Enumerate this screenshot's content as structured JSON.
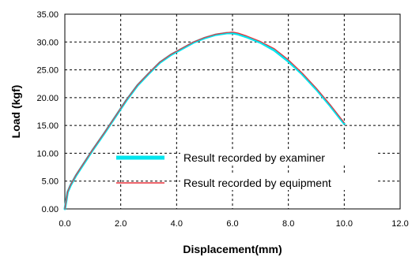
{
  "chart_data": {
    "type": "line",
    "title": "",
    "xlabel": "Displacement(mm)",
    "ylabel": "Load (kgf)",
    "xlim": [
      0,
      12
    ],
    "ylim": [
      0,
      35
    ],
    "x_ticks": [
      0,
      2,
      4,
      6,
      8,
      10,
      12
    ],
    "x_tick_labels": [
      "0.0",
      "2.0",
      "4.0",
      "6.0",
      "8.0",
      "10.0",
      "12.0"
    ],
    "y_ticks": [
      0,
      5,
      10,
      15,
      20,
      25,
      30,
      35
    ],
    "y_tick_labels": [
      "0.00",
      "5.00",
      "10.00",
      "15.00",
      "20.00",
      "25.00",
      "30.00",
      "35.00"
    ],
    "grid": true,
    "legend_position": "center",
    "series": [
      {
        "name": "Result recorded by examiner",
        "color": "#00e5ee",
        "style": "thick",
        "x": [
          0.0,
          0.05,
          0.1,
          0.2,
          0.4,
          0.7,
          1.0,
          1.4,
          1.8,
          2.2,
          2.6,
          3.0,
          3.4,
          3.8,
          4.2,
          4.6,
          5.0,
          5.4,
          5.8,
          6.0,
          6.2,
          6.5,
          7.0,
          7.5,
          8.0,
          8.5,
          9.0,
          9.5,
          10.0
        ],
        "y": [
          0.0,
          1.5,
          3.0,
          4.2,
          6.0,
          8.3,
          10.6,
          13.5,
          16.5,
          19.5,
          22.2,
          24.3,
          26.3,
          27.7,
          28.8,
          29.9,
          30.7,
          31.3,
          31.6,
          31.6,
          31.4,
          30.9,
          29.9,
          28.5,
          26.5,
          24.2,
          21.5,
          18.5,
          15.3
        ]
      },
      {
        "name": "Result recorded by equipment",
        "color": "#e8323c",
        "style": "thin",
        "x": [
          0.0,
          0.05,
          0.1,
          0.2,
          0.4,
          0.7,
          1.0,
          1.4,
          1.8,
          2.2,
          2.6,
          3.0,
          3.4,
          3.8,
          4.2,
          4.6,
          5.0,
          5.4,
          5.8,
          6.0,
          6.2,
          6.5,
          7.0,
          7.5,
          8.0,
          8.5,
          9.0,
          9.5,
          10.0
        ],
        "y": [
          0.0,
          1.6,
          3.1,
          4.3,
          6.1,
          8.4,
          10.7,
          13.6,
          16.6,
          19.6,
          22.3,
          24.4,
          26.4,
          27.8,
          28.9,
          30.0,
          30.8,
          31.4,
          31.7,
          31.8,
          31.6,
          31.1,
          30.1,
          28.8,
          26.8,
          24.4,
          21.7,
          18.7,
          15.5
        ]
      }
    ]
  }
}
